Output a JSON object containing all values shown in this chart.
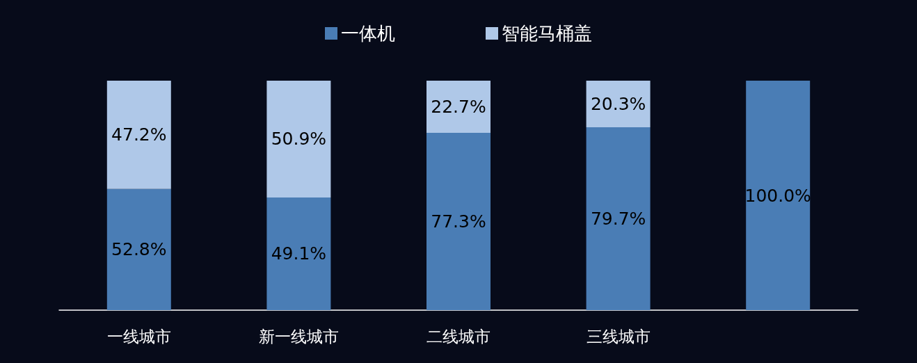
{
  "chart_data": {
    "type": "bar",
    "stacked": true,
    "categories": [
      "一线城市",
      "新一线城市",
      "二线城市",
      "三线城市",
      null
    ],
    "series": [
      {
        "name": "一体机",
        "color": "#4a7db5",
        "values": [
          52.8,
          49.1,
          77.3,
          79.7,
          100.0
        ],
        "value_labels": [
          "52.8%",
          "49.1%",
          "77.3%",
          "79.7%",
          "100.0%"
        ]
      },
      {
        "name": "智能马桶盖",
        "color": "#afc8e8",
        "values": [
          47.2,
          50.9,
          22.7,
          20.3,
          0
        ],
        "value_labels": [
          "47.2%",
          "50.9%",
          "22.7%",
          "20.3%",
          null
        ]
      }
    ],
    "legend": "top"
  }
}
